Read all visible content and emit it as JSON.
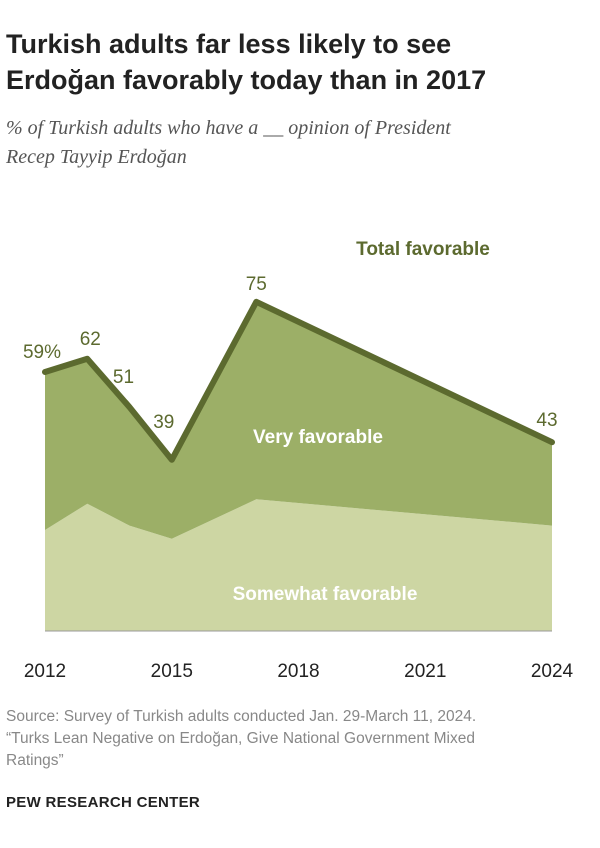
{
  "header": {
    "title_line1": "Turkish adults far less likely to see",
    "title_line2": "Erdoğan favorably today than in 2017",
    "subtitle_line1": "% of Turkish adults who have a __ opinion of President",
    "subtitle_line2": "Recep Tayyip Erdoğan"
  },
  "chart_data": {
    "type": "area",
    "x": [
      2012,
      2013,
      2014,
      2015,
      2017,
      2024
    ],
    "xticks": [
      2012,
      2015,
      2018,
      2021,
      2024
    ],
    "xlim": [
      2012,
      2024
    ],
    "ylim": [
      0,
      100
    ],
    "series": [
      {
        "name": "Somewhat favorable",
        "values": [
          23,
          29,
          24,
          21,
          30,
          24
        ],
        "color": "#cdd6a3"
      },
      {
        "name": "Very favorable",
        "values": [
          36,
          33,
          27,
          18,
          45,
          19
        ],
        "color": "#9caf67"
      }
    ],
    "total": {
      "name": "Total favorable",
      "values": [
        59,
        62,
        51,
        39,
        75,
        43
      ],
      "labels": [
        "59%",
        "62",
        "51",
        "39",
        "75",
        "43"
      ],
      "color": "#5c6a2f"
    },
    "series_labels": {
      "total": "Total favorable",
      "very": "Very favorable",
      "somewhat": "Somewhat favorable"
    }
  },
  "footer": {
    "source_line1": "Source: Survey of Turkish adults conducted Jan. 29-March 11, 2024.",
    "source_line2": "“Turks Lean Negative on Erdoğan, Give National Government Mixed",
    "source_line3": "Ratings”",
    "brand": "PEW RESEARCH CENTER"
  }
}
